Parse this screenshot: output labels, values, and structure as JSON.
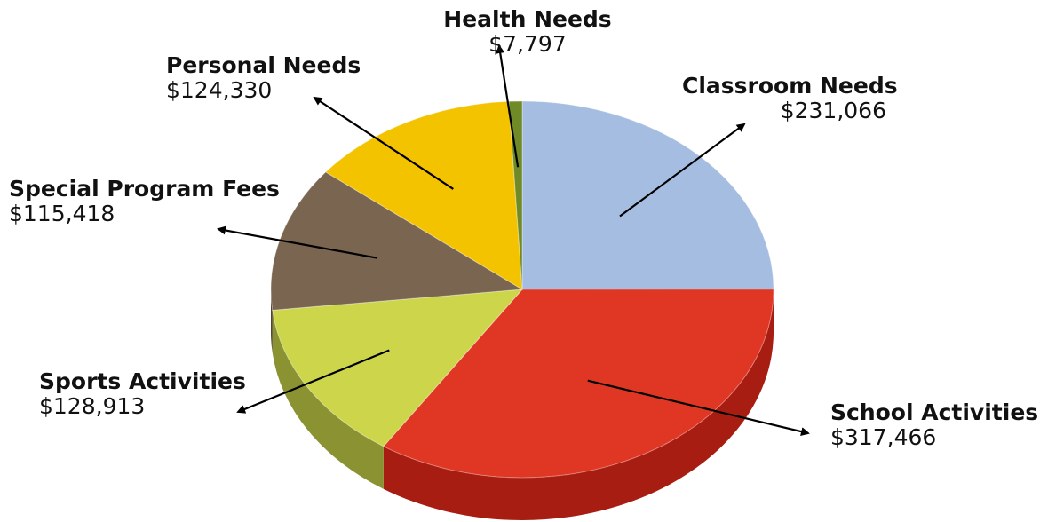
{
  "chart_data": {
    "type": "pie",
    "style": "3d",
    "title": "",
    "slices": [
      {
        "name": "Classroom Needs",
        "value_label": "$231,066",
        "value": 231066,
        "color": "#a5bde0",
        "side": "#7b94bb"
      },
      {
        "name": "School Activities",
        "value_label": "$317,466",
        "value": 317466,
        "color": "#e03624",
        "side": "#a81d12"
      },
      {
        "name": "Sports Activities",
        "value_label": "$128,913",
        "value": 128913,
        "color": "#cdd64a",
        "side": "#8a9231"
      },
      {
        "name": "Special Program Fees",
        "value_label": "$115,418",
        "value": 115418,
        "color": "#7a6550",
        "side": "#54442f"
      },
      {
        "name": "Personal Needs",
        "value_label": "$124,330",
        "value": 124330,
        "color": "#f4c300",
        "side": "#b08d00"
      },
      {
        "name": "Health Needs",
        "value_label": "$7,797",
        "value": 7797,
        "color": "#6f8a26",
        "side": "#4b5e1a"
      }
    ]
  }
}
